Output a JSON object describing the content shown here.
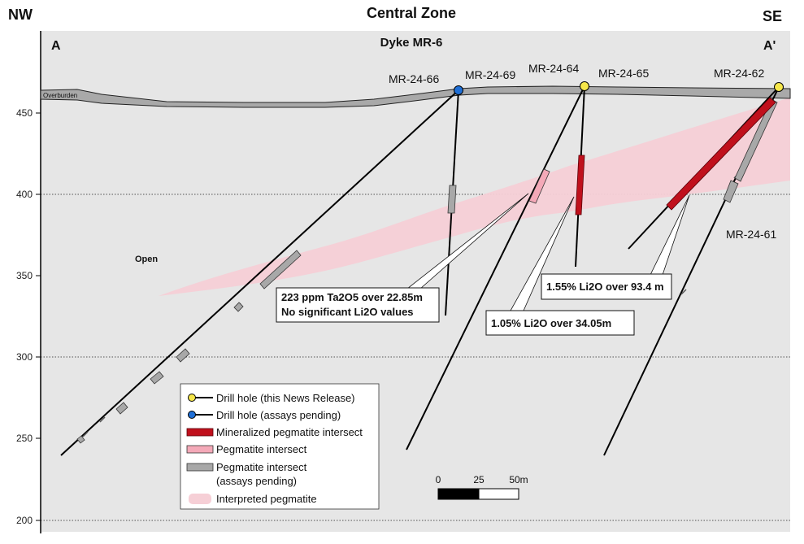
{
  "header": {
    "left": "NW",
    "center": "Central Zone",
    "right": "SE"
  },
  "section": {
    "start_label": "A",
    "end_label": "A'",
    "dyke_label": "Dyke MR-6",
    "overburden_label": "Overburden",
    "open_label": "Open"
  },
  "elevation_ticks": [
    "450",
    "400",
    "350",
    "300",
    "250",
    "200"
  ],
  "drill_holes": {
    "mr_24_66": "MR-24-66",
    "mr_24_69": "MR-24-69",
    "mr_24_64": "MR-24-64",
    "mr_24_65": "MR-24-65",
    "mr_24_62": "MR-24-62",
    "mr_24_61": "MR-24-61"
  },
  "callouts": {
    "ta2o5_line1": "223 ppm Ta2O5 over 22.85m",
    "ta2o5_line2": "No significant Li2O values",
    "li2o_105": "1.05% Li2O over 34.05m",
    "li2o_155": "1.55% Li2O over 93.4 m"
  },
  "legend": {
    "drill_hole_release": "Drill hole (this News Release)",
    "drill_hole_pending": "Drill hole (assays pending)",
    "mineralized": "Mineralized pegmatite intersect",
    "pegmatite": "Pegmatite intersect",
    "pegmatite_pending_1": "Pegmatite intersect",
    "pegmatite_pending_2": "(assays pending)",
    "interpreted": "Interpreted pegmatite"
  },
  "scale_bar": {
    "label_0": "0",
    "label_25": "25",
    "label_50": "50m"
  },
  "colors": {
    "background": "#e6e6e6",
    "mineralized": "#c0101c",
    "pegmatite": "#f4a9b8",
    "pending": "#a8a8a8",
    "interpreted": "#f6cfd6",
    "collar_release": "#f5e64a",
    "collar_pending": "#1f6fd6",
    "overburden": "#a9a9a9"
  }
}
